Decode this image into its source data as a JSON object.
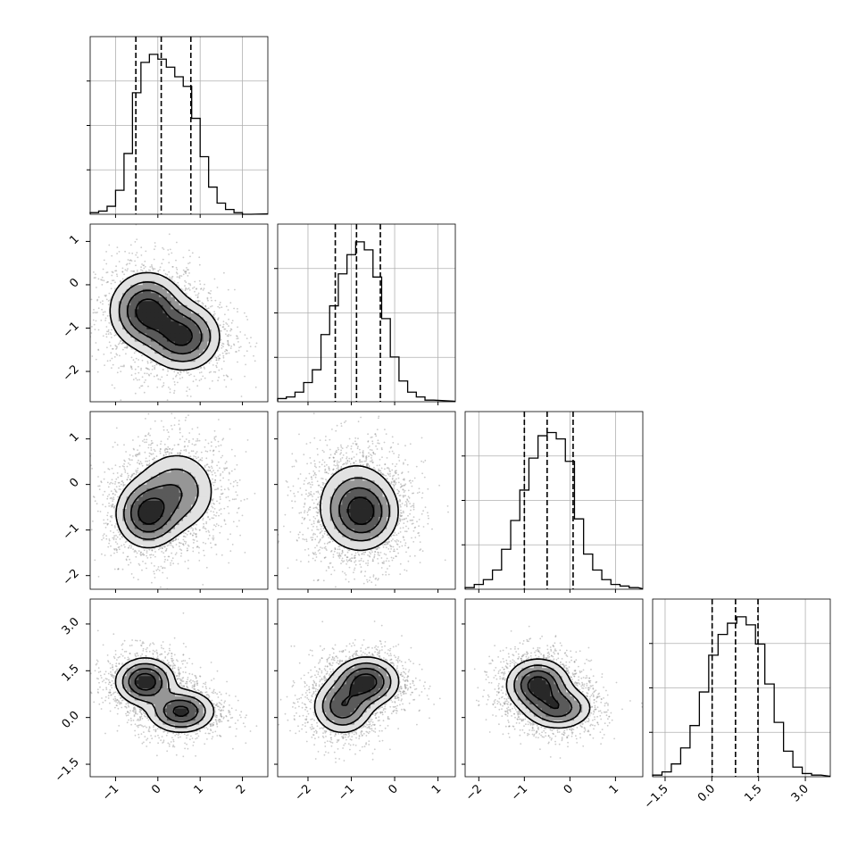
{
  "colors": {
    "background": "#ffffff",
    "ink": "#000000",
    "grid": "#b0b0b0",
    "scatter": "#8c8c8c"
  },
  "chart_data": {
    "type": "corner",
    "title": "",
    "grid": true,
    "variables": [
      {
        "id": "v1",
        "range": [
          -1.6,
          2.6
        ],
        "ticks": [
          -1,
          0,
          1,
          2
        ],
        "tick_labels": [
          "−1",
          "0",
          "1",
          "2"
        ],
        "quantiles": [
          -0.52,
          0.08,
          0.78
        ],
        "histogram": {
          "bin_edges": [
            -1.6,
            -1.4,
            -1.2,
            -1.0,
            -0.8,
            -0.6,
            -0.4,
            -0.2,
            0.0,
            0.2,
            0.4,
            0.6,
            0.8,
            1.0,
            1.2,
            1.4,
            1.6,
            1.8,
            2.0,
            2.2
          ],
          "heights": [
            0.01,
            0.02,
            0.05,
            0.15,
            0.38,
            0.76,
            0.95,
            1.0,
            0.97,
            0.92,
            0.86,
            0.8,
            0.6,
            0.36,
            0.17,
            0.07,
            0.03,
            0.01,
            0.0
          ]
        }
      },
      {
        "id": "v2",
        "range": [
          -2.7,
          1.4
        ],
        "ticks": [
          -2,
          -1,
          0,
          1
        ],
        "tick_labels": [
          "−2",
          "−1",
          "0",
          "1"
        ],
        "quantiles": [
          -1.37,
          -0.88,
          -0.33
        ],
        "histogram": {
          "bin_edges": [
            -2.7,
            -2.5,
            -2.3,
            -2.1,
            -1.9,
            -1.7,
            -1.5,
            -1.3,
            -1.1,
            -0.9,
            -0.7,
            -0.5,
            -0.3,
            -0.1,
            0.1,
            0.3,
            0.5,
            0.7,
            0.9
          ],
          "heights": [
            0.02,
            0.03,
            0.06,
            0.12,
            0.2,
            0.42,
            0.6,
            0.8,
            0.92,
            1.0,
            0.95,
            0.78,
            0.52,
            0.28,
            0.13,
            0.06,
            0.03,
            0.01
          ]
        }
      },
      {
        "id": "v3",
        "range": [
          -2.3,
          1.6
        ],
        "ticks": [
          -2,
          -1,
          0,
          1
        ],
        "tick_labels": [
          "−2",
          "−1",
          "0",
          "1"
        ],
        "quantiles": [
          -1.0,
          -0.5,
          0.07
        ],
        "histogram": {
          "bin_edges": [
            -2.3,
            -2.1,
            -1.9,
            -1.7,
            -1.5,
            -1.3,
            -1.1,
            -0.9,
            -0.7,
            -0.5,
            -0.3,
            -0.1,
            0.1,
            0.3,
            0.5,
            0.7,
            0.9,
            1.1,
            1.3,
            1.5
          ],
          "heights": [
            0.01,
            0.03,
            0.06,
            0.12,
            0.25,
            0.43,
            0.62,
            0.82,
            0.96,
            0.98,
            0.94,
            0.8,
            0.44,
            0.22,
            0.12,
            0.06,
            0.03,
            0.02,
            0.01
          ]
        }
      },
      {
        "id": "v4",
        "range": [
          -1.9,
          3.8
        ],
        "ticks": [
          -1.5,
          0.0,
          1.5,
          3.0
        ],
        "tick_labels": [
          "−1.5",
          "0.0",
          "1.5",
          "3.0"
        ],
        "quantiles": [
          0.01,
          0.76,
          1.48
        ],
        "histogram": {
          "bin_edges": [
            -1.9,
            -1.6,
            -1.3,
            -1.0,
            -0.7,
            -0.4,
            -0.1,
            0.2,
            0.5,
            0.8,
            1.1,
            1.4,
            1.7,
            2.0,
            2.3,
            2.6,
            2.9,
            3.2,
            3.5
          ],
          "heights": [
            0.01,
            0.03,
            0.08,
            0.18,
            0.32,
            0.53,
            0.76,
            0.89,
            0.96,
            1.0,
            0.95,
            0.83,
            0.58,
            0.34,
            0.16,
            0.06,
            0.02,
            0.01
          ]
        }
      }
    ],
    "pairs": [
      {
        "x": "v1",
        "y": "v2",
        "components": [
          {
            "mean": [
              -0.25,
              -0.6
            ],
            "sd": [
              0.45,
              0.45
            ],
            "rho": 0.0,
            "weight": 0.55
          },
          {
            "mean": [
              0.6,
              -1.2
            ],
            "sd": [
              0.45,
              0.4
            ],
            "rho": 0.0,
            "weight": 0.45
          }
        ]
      },
      {
        "x": "v1",
        "y": "v3",
        "components": [
          {
            "mean": [
              -0.25,
              -0.65
            ],
            "sd": [
              0.38,
              0.38
            ],
            "rho": 0.0,
            "weight": 0.5
          },
          {
            "mean": [
              0.45,
              -0.15
            ],
            "sd": [
              0.5,
              0.48
            ],
            "rho": 0.0,
            "weight": 0.5
          }
        ]
      },
      {
        "x": "v1",
        "y": "v4",
        "components": [
          {
            "mean": [
              -0.3,
              1.15
            ],
            "sd": [
              0.35,
              0.38
            ],
            "rho": 0.0,
            "weight": 0.52
          },
          {
            "mean": [
              0.55,
              0.2
            ],
            "sd": [
              0.4,
              0.35
            ],
            "rho": 0.0,
            "weight": 0.48
          }
        ]
      },
      {
        "x": "v2",
        "y": "v3",
        "components": [
          {
            "mean": [
              -0.9,
              -0.45
            ],
            "sd": [
              0.48,
              0.52
            ],
            "rho": 0.0,
            "weight": 0.6
          },
          {
            "mean": [
              -0.7,
              -0.65
            ],
            "sd": [
              0.4,
              0.38
            ],
            "rho": 0.0,
            "weight": 0.4
          }
        ]
      },
      {
        "x": "v2",
        "y": "v4",
        "components": [
          {
            "mean": [
              -1.2,
              0.35
            ],
            "sd": [
              0.35,
              0.45
            ],
            "rho": 0.0,
            "weight": 0.45
          },
          {
            "mean": [
              -0.65,
              1.15
            ],
            "sd": [
              0.38,
              0.4
            ],
            "rho": 0.0,
            "weight": 0.55
          }
        ]
      },
      {
        "x": "v3",
        "y": "v4",
        "components": [
          {
            "mean": [
              -0.7,
              1.05
            ],
            "sd": [
              0.35,
              0.42
            ],
            "rho": 0.0,
            "weight": 0.6
          },
          {
            "mean": [
              -0.25,
              0.3
            ],
            "sd": [
              0.38,
              0.35
            ],
            "rho": 0.0,
            "weight": 0.4
          }
        ]
      }
    ]
  }
}
